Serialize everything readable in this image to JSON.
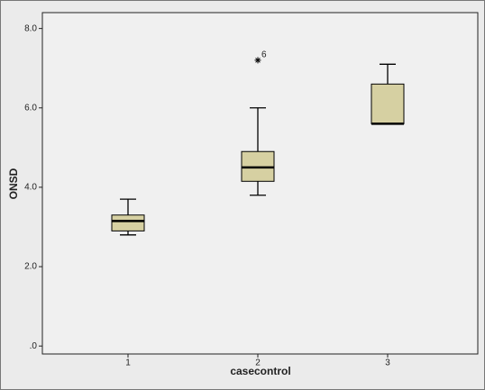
{
  "chart_data": {
    "type": "box",
    "x_label": "casecontrol",
    "y_label": "ONSD",
    "categories": [
      "1",
      "2",
      "3"
    ],
    "min": [
      2.8,
      3.8,
      5.6
    ],
    "q1": [
      2.9,
      4.15,
      5.6
    ],
    "median": [
      3.15,
      4.5,
      5.6
    ],
    "q3": [
      3.3,
      4.9,
      6.6
    ],
    "max": [
      3.7,
      6.0,
      7.1
    ],
    "outliers": [
      [],
      [
        7.2
      ],
      []
    ],
    "outlier_labels": [
      [],
      [
        "6"
      ],
      []
    ],
    "color": "#d6d0a2",
    "ylim": [
      -0.2,
      8.4
    ],
    "yticks": [
      {
        "value": 0,
        "label": ".0"
      },
      {
        "value": 2,
        "label": "2.0"
      },
      {
        "value": 4,
        "label": "4.0"
      },
      {
        "value": 6,
        "label": "6.0"
      },
      {
        "value": 8,
        "label": "8.0"
      }
    ]
  }
}
